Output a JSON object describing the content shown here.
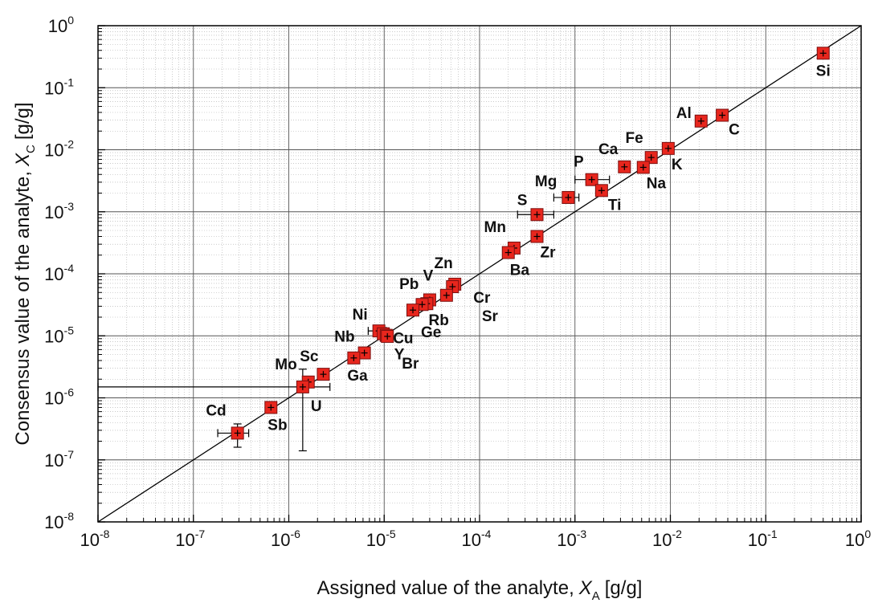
{
  "chart_data": {
    "type": "scatter",
    "title": "",
    "xlabel": "Assigned value of the analyte,",
    "xlabel_symbol": "X",
    "xlabel_sub": "A",
    "xlabel_unit": "[g/g]",
    "ylabel": "Consensus value of the analyte,",
    "ylabel_symbol": "X",
    "ylabel_sub": "C",
    "ylabel_unit": "[g/g]",
    "xscale": "log",
    "yscale": "log",
    "xlim": [
      1e-08,
      1
    ],
    "ylim": [
      1e-08,
      1
    ],
    "grid": true,
    "marker_color": "#e8261d",
    "line_color": "#000000",
    "reference_line": "y = x",
    "x_tick_labels": [
      {
        "base": "10",
        "exp": "-8"
      },
      {
        "base": "10",
        "exp": "-7"
      },
      {
        "base": "10",
        "exp": "-6"
      },
      {
        "base": "10",
        "exp": "-5"
      },
      {
        "base": "10",
        "exp": "-4"
      },
      {
        "base": "10",
        "exp": "-3"
      },
      {
        "base": "10",
        "exp": "-2"
      },
      {
        "base": "10",
        "exp": "-1"
      },
      {
        "base": "10",
        "exp": "0"
      }
    ],
    "y_tick_labels": [
      {
        "base": "10",
        "exp": "-8"
      },
      {
        "base": "10",
        "exp": "-7"
      },
      {
        "base": "10",
        "exp": "-6"
      },
      {
        "base": "10",
        "exp": "-5"
      },
      {
        "base": "10",
        "exp": "-4"
      },
      {
        "base": "10",
        "exp": "-3"
      },
      {
        "base": "10",
        "exp": "-2"
      },
      {
        "base": "10",
        "exp": "-1"
      },
      {
        "base": "10",
        "exp": "0"
      }
    ],
    "points": [
      {
        "label": "Si",
        "x": 0.4,
        "y": 0.36
      },
      {
        "label": "Al",
        "x": 0.021,
        "y": 0.029
      },
      {
        "label": "C",
        "x": 0.035,
        "y": 0.036
      },
      {
        "label": "Fe",
        "x": 0.0063,
        "y": 0.0075
      },
      {
        "label": "K",
        "x": 0.0095,
        "y": 0.0105
      },
      {
        "label": "Ca",
        "x": 0.0033,
        "y": 0.0053
      },
      {
        "label": "Na",
        "x": 0.0052,
        "y": 0.0052
      },
      {
        "label": "P",
        "x": 0.0015,
        "y": 0.0033,
        "xerr": [
          0.001,
          0.0023
        ]
      },
      {
        "label": "Ti",
        "x": 0.0019,
        "y": 0.0022
      },
      {
        "label": "Mg",
        "x": 0.00085,
        "y": 0.0017,
        "xerr": [
          0.0006,
          0.0011
        ]
      },
      {
        "label": "S",
        "x": 0.0004,
        "y": 0.0009,
        "xerr": [
          0.00025,
          0.0006
        ]
      },
      {
        "label": "Zr",
        "x": 0.0004,
        "y": 0.0004
      },
      {
        "label": "Mn",
        "x": 0.00023,
        "y": 0.00026
      },
      {
        "label": "Ba",
        "x": 0.0002,
        "y": 0.00022
      },
      {
        "label": "Zn",
        "x": 5.5e-05,
        "y": 6.8e-05
      },
      {
        "label": "Cr",
        "x": 5.2e-05,
        "y": 6.2e-05
      },
      {
        "label": "Sr",
        "x": 4.5e-05,
        "y": 4.5e-05
      },
      {
        "label": "V",
        "x": 3e-05,
        "y": 3.8e-05
      },
      {
        "label": "Pb",
        "x": 2.8e-05,
        "y": 3.3e-05
      },
      {
        "label": "Rb",
        "x": 2.5e-05,
        "y": 3.2e-05
      },
      {
        "label": "Ge",
        "x": 2e-05,
        "y": 2.6e-05
      },
      {
        "label": "Ni",
        "x": 8.8e-06,
        "y": 1.2e-05,
        "xerr": [
          6.8e-06,
          1.05e-05
        ]
      },
      {
        "label": "Cu",
        "x": 9.8e-06,
        "y": 1.08e-05
      },
      {
        "label": "Y",
        "x": 1.05e-05,
        "y": 1.02e-05
      },
      {
        "label": "Br",
        "x": 1.08e-05,
        "y": 9.8e-06
      },
      {
        "label": "Nb",
        "x": 6.2e-06,
        "y": 5.3e-06
      },
      {
        "label": "Ga",
        "x": 4.8e-06,
        "y": 4.4e-06
      },
      {
        "label": "Sc",
        "x": 2.3e-06,
        "y": 2.4e-06
      },
      {
        "label": "Mo",
        "x": 1.6e-06,
        "y": 1.8e-06
      },
      {
        "label": "U",
        "x": 1.4e-06,
        "y": 1.5e-06,
        "xerr": [
          1e-08,
          2.7e-06
        ],
        "yerr": [
          1.4e-07,
          2.9e-06
        ]
      },
      {
        "label": "Sb",
        "x": 6.5e-07,
        "y": 7e-07
      },
      {
        "label": "Cd",
        "x": 2.9e-07,
        "y": 2.7e-07,
        "xerr": [
          1.8e-07,
          3.8e-07
        ],
        "yerr": [
          1.6e-07,
          3.8e-07
        ]
      }
    ]
  }
}
